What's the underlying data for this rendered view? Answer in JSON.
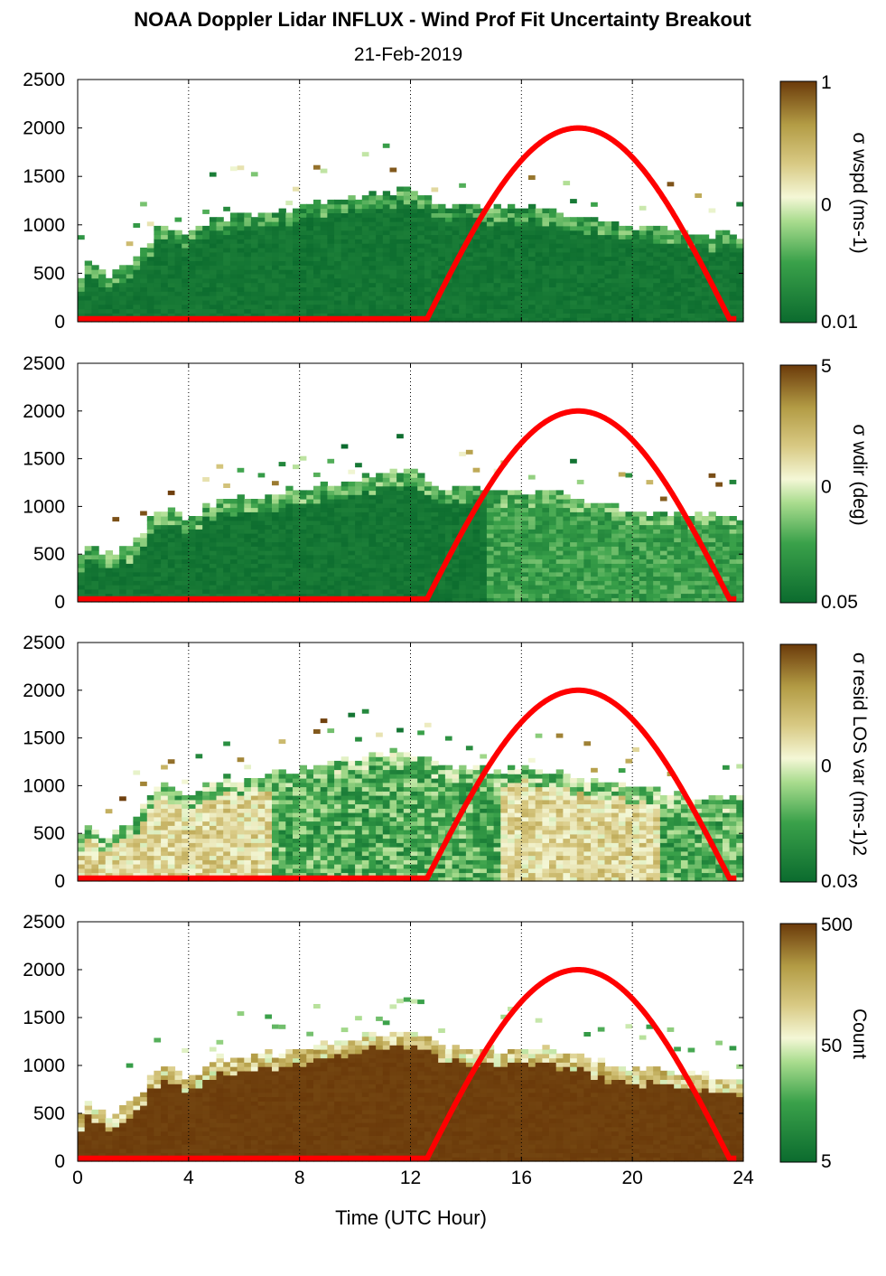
{
  "figure": {
    "title": "NOAA Doppler Lidar INFLUX - Wind Prof Fit Uncertainty Breakout",
    "subtitle": "21-Feb-2019",
    "xlabel": "Time (UTC Hour)"
  },
  "colors": {
    "dark_green": "#0b6b2e",
    "green": "#3aa14a",
    "light_green": "#a9dc8e",
    "pale": "#f4f7d6",
    "khaki": "#d8c983",
    "olive": "#b39c45",
    "dark_brown": "#6b3a0a",
    "sun_curve": "#ff0000"
  },
  "chart_data": [
    {
      "type": "heatmap",
      "panel": "sigma-wspd",
      "xlim": [
        0,
        24
      ],
      "ylim": [
        0,
        2500
      ],
      "x_ticks": [
        "0",
        "4",
        "8",
        "12",
        "16",
        "20",
        "24"
      ],
      "y_ticks": [
        "0",
        "500",
        "1000",
        "1500",
        "2000",
        "2500"
      ],
      "colorbar": {
        "label": "σ wspd (ms-1)",
        "tick_labels": [
          "1",
          "0",
          "0.01"
        ],
        "scale": "log"
      },
      "dominant_color_level": 0.05,
      "cloud_top_m": [
        [
          0,
          300
        ],
        [
          0.3,
          620
        ],
        [
          1,
          450
        ],
        [
          2,
          580
        ],
        [
          3,
          1000
        ],
        [
          4,
          850
        ],
        [
          5,
          1050
        ],
        [
          6,
          1070
        ],
        [
          8,
          1150
        ],
        [
          10,
          1280
        ],
        [
          12,
          1350
        ],
        [
          13,
          1200
        ],
        [
          15,
          1150
        ],
        [
          17,
          1150
        ],
        [
          19,
          1000
        ],
        [
          21,
          920
        ],
        [
          23.8,
          850
        ]
      ],
      "sun_curve": {
        "x": [
          0,
          12.6,
          18,
          23.5,
          23.8
        ],
        "y": [
          30,
          30,
          2000,
          30,
          30
        ]
      }
    },
    {
      "type": "heatmap",
      "panel": "sigma-wdir",
      "xlim": [
        0,
        24
      ],
      "ylim": [
        0,
        2500
      ],
      "x_ticks": [
        "0",
        "4",
        "8",
        "12",
        "16",
        "20",
        "24"
      ],
      "y_ticks": [
        "0",
        "500",
        "1000",
        "1500",
        "2000",
        "2500"
      ],
      "colorbar": {
        "label": "σ wdir (deg)",
        "tick_labels": [
          "5",
          "0",
          "0.05"
        ],
        "scale": "log"
      },
      "dominant_color_level": 0.1,
      "sun_curve": {
        "x": [
          0,
          12.6,
          18,
          23.5,
          23.8
        ],
        "y": [
          30,
          30,
          2000,
          30,
          30
        ]
      }
    },
    {
      "type": "heatmap",
      "panel": "sigma-resid-los-var",
      "xlim": [
        0,
        24
      ],
      "ylim": [
        0,
        2500
      ],
      "x_ticks": [
        "0",
        "4",
        "8",
        "12",
        "16",
        "20",
        "24"
      ],
      "y_ticks": [
        "0",
        "500",
        "1000",
        "1500",
        "2000",
        "2500"
      ],
      "colorbar": {
        "label": "σ resid LOS var (ms-1)2",
        "tick_labels": [
          "0",
          "0.03"
        ],
        "scale": "log"
      },
      "dominant_color_level": 0.5,
      "sun_curve": {
        "x": [
          0,
          12.6,
          18,
          23.5,
          23.8
        ],
        "y": [
          30,
          30,
          2000,
          30,
          30
        ]
      }
    },
    {
      "type": "heatmap",
      "panel": "count",
      "xlim": [
        0,
        24
      ],
      "ylim": [
        0,
        2500
      ],
      "x_ticks": [
        "0",
        "4",
        "8",
        "12",
        "16",
        "20",
        "24"
      ],
      "y_ticks": [
        "0",
        "500",
        "1000",
        "1500",
        "2000",
        "2500"
      ],
      "colorbar": {
        "label": "Count",
        "tick_labels": [
          "500",
          "50",
          "5"
        ],
        "scale": "log"
      },
      "dominant_color_level": 0.98,
      "sun_curve": {
        "x": [
          0,
          12.6,
          18,
          23.5,
          23.8
        ],
        "y": [
          30,
          30,
          2000,
          30,
          30
        ]
      }
    }
  ]
}
